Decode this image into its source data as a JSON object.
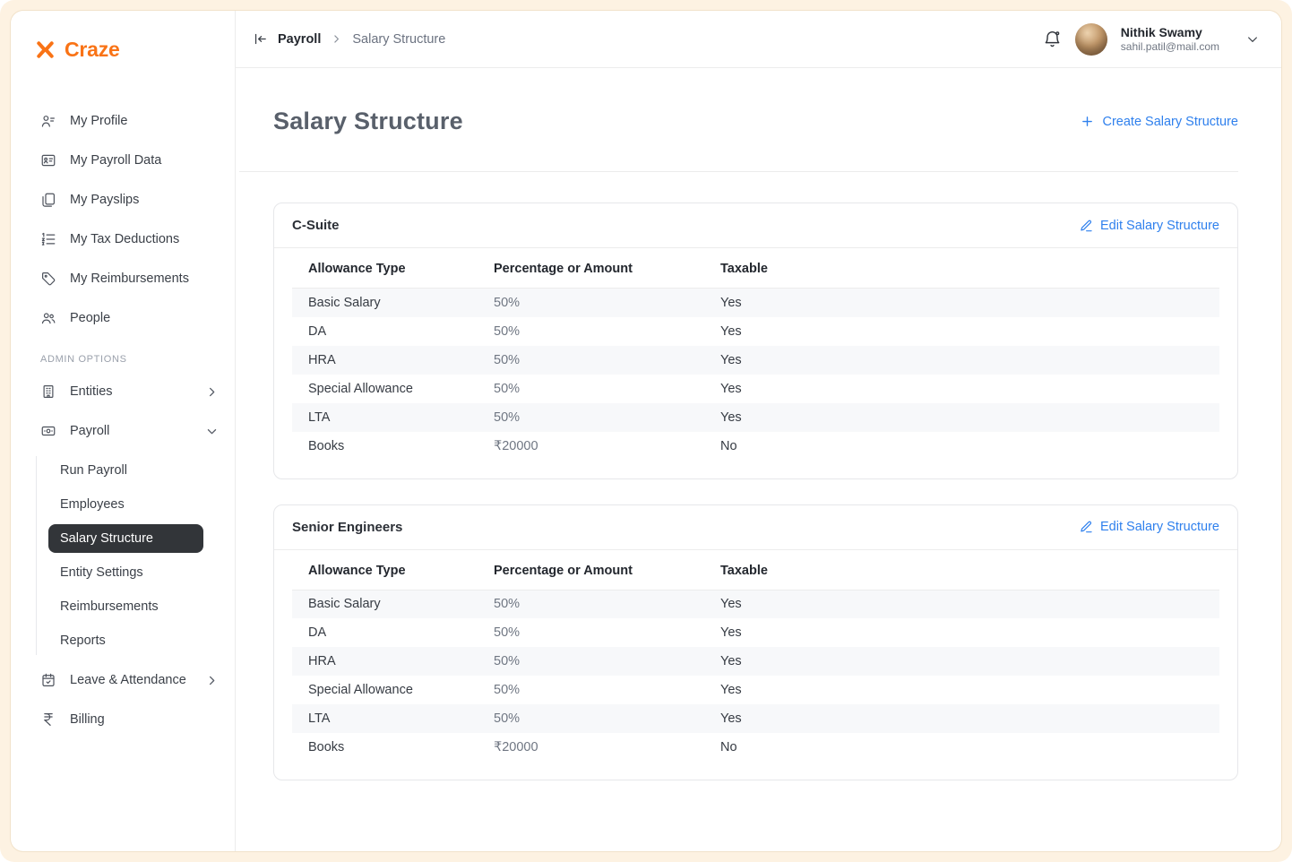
{
  "brand": {
    "name": "Craze",
    "accent_orange": "#f97316",
    "accent_blue": "#2f80ed",
    "active_item_bg": "#323539"
  },
  "sidebar": {
    "primary": [
      {
        "label": "My Profile",
        "icon": "user-icon"
      },
      {
        "label": "My Payroll Data",
        "icon": "id-card-icon"
      },
      {
        "label": "My Payslips",
        "icon": "documents-icon"
      },
      {
        "label": "My Tax Deductions",
        "icon": "list-icon"
      },
      {
        "label": "My Reimbursements",
        "icon": "tag-icon"
      },
      {
        "label": "People",
        "icon": "people-icon"
      }
    ],
    "section_label": "ADMIN OPTIONS",
    "admin": [
      {
        "label": "Entities",
        "icon": "building-icon",
        "expanded": false
      },
      {
        "label": "Payroll",
        "icon": "banknote-icon",
        "expanded": true
      }
    ],
    "payroll_children": [
      {
        "label": "Run Payroll",
        "active": false
      },
      {
        "label": "Employees",
        "active": false
      },
      {
        "label": "Salary Structure",
        "active": true
      },
      {
        "label": "Entity Settings",
        "active": false
      },
      {
        "label": "Reimbursements",
        "active": false
      },
      {
        "label": "Reports",
        "active": false
      }
    ],
    "footer": [
      {
        "label": "Leave & Attendance",
        "icon": "calendar-icon",
        "expanded": false
      },
      {
        "label": "Billing",
        "icon": "rupee-icon"
      }
    ]
  },
  "header": {
    "breadcrumb": {
      "section": "Payroll",
      "page": "Salary Structure"
    },
    "user": {
      "name": "Nithik Swamy",
      "email": "sahil.patil@mail.com"
    }
  },
  "page": {
    "title": "Salary Structure",
    "create_label": "Create Salary Structure"
  },
  "cards": [
    {
      "title": "C-Suite",
      "edit_label": "Edit Salary Structure",
      "columns": [
        "Allowance Type",
        "Percentage or Amount",
        "Taxable"
      ],
      "rows": [
        [
          "Basic Salary",
          "50%",
          "Yes"
        ],
        [
          "DA",
          "50%",
          "Yes"
        ],
        [
          "HRA",
          "50%",
          "Yes"
        ],
        [
          "Special Allowance",
          "50%",
          "Yes"
        ],
        [
          "LTA",
          "50%",
          "Yes"
        ],
        [
          "Books",
          "₹20000",
          "No"
        ]
      ]
    },
    {
      "title": "Senior Engineers",
      "edit_label": "Edit Salary Structure",
      "columns": [
        "Allowance Type",
        "Percentage or Amount",
        "Taxable"
      ],
      "rows": [
        [
          "Basic Salary",
          "50%",
          "Yes"
        ],
        [
          "DA",
          "50%",
          "Yes"
        ],
        [
          "HRA",
          "50%",
          "Yes"
        ],
        [
          "Special Allowance",
          "50%",
          "Yes"
        ],
        [
          "LTA",
          "50%",
          "Yes"
        ],
        [
          "Books",
          "₹20000",
          "No"
        ]
      ]
    }
  ]
}
